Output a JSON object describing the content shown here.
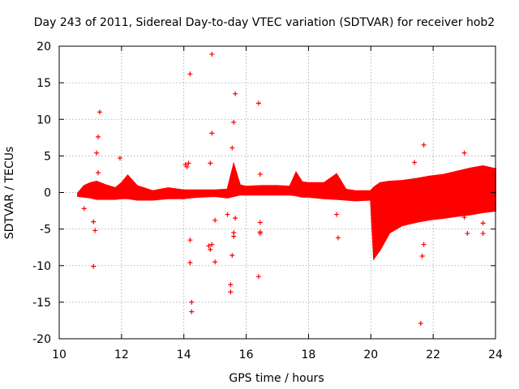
{
  "chart_data": {
    "type": "scatter",
    "title": "Day 243 of 2011, Sidereal Day-to-day VTEC variation (SDTVAR) for receiver hob2",
    "xlabel": "GPS time / hours",
    "ylabel": "SDTVAR / TECUs",
    "xlim": [
      10,
      24
    ],
    "ylim": [
      -20,
      20
    ],
    "xticks": [
      10,
      12,
      14,
      16,
      18,
      20,
      22,
      24
    ],
    "yticks": [
      -20,
      -15,
      -10,
      -5,
      0,
      5,
      10,
      15,
      20
    ],
    "xtick_labels": [
      "10",
      "12",
      "14",
      "16",
      "18",
      "20",
      "22",
      "24"
    ],
    "ytick_labels": [
      "-20",
      "-15",
      "-10",
      "-5",
      "0",
      "5",
      "10",
      "15",
      "20"
    ],
    "grid": true,
    "series_color": "#ff0000",
    "marker": "plus",
    "band": {
      "x": [
        10.6,
        10.8,
        11.0,
        11.2,
        11.5,
        11.8,
        12.0,
        12.2,
        12.5,
        13.0,
        13.5,
        14.0,
        14.2,
        14.5,
        15.0,
        15.4,
        15.6,
        15.8,
        16.0,
        16.5,
        17.0,
        17.4,
        17.6,
        17.8,
        18.0,
        18.5,
        18.9,
        19.2,
        19.5,
        20.0,
        20.1,
        20.3,
        20.6,
        21.0,
        21.5,
        21.9,
        22.3,
        22.8,
        23.2,
        23.6,
        24.0
      ],
      "upper": [
        -0.1,
        0.9,
        1.3,
        1.5,
        1.0,
        0.6,
        1.3,
        2.3,
        0.9,
        0.2,
        0.6,
        0.3,
        0.3,
        0.3,
        0.3,
        0.4,
        3.8,
        1.0,
        0.8,
        0.9,
        0.9,
        0.8,
        2.7,
        1.4,
        1.3,
        1.3,
        2.5,
        0.4,
        0.2,
        0.2,
        0.7,
        1.3,
        1.5,
        1.6,
        1.9,
        2.2,
        2.4,
        2.9,
        3.3,
        3.6,
        3.2
      ],
      "lower": [
        -0.5,
        -0.6,
        -0.7,
        -0.9,
        -0.9,
        -0.9,
        -0.8,
        -0.8,
        -1.0,
        -1.0,
        -0.8,
        -0.8,
        -0.7,
        -0.6,
        -0.5,
        -0.7,
        -0.5,
        -0.3,
        -0.3,
        -0.3,
        -0.3,
        -0.3,
        -0.4,
        -0.6,
        -0.6,
        -0.8,
        -0.9,
        -1.0,
        -1.1,
        -1.0,
        -9.0,
        -7.8,
        -5.5,
        -4.5,
        -4.0,
        -3.7,
        -3.5,
        -3.2,
        -3.0,
        -2.7,
        -2.5
      ]
    },
    "points": [
      [
        10.8,
        -2.2
      ],
      [
        11.1,
        -10.1
      ],
      [
        11.1,
        -4.0
      ],
      [
        11.15,
        -5.2
      ],
      [
        11.2,
        5.4
      ],
      [
        11.25,
        7.6
      ],
      [
        11.25,
        2.7
      ],
      [
        11.3,
        11.0
      ],
      [
        11.95,
        4.7
      ],
      [
        14.05,
        3.8
      ],
      [
        14.1,
        3.5
      ],
      [
        14.15,
        4.0
      ],
      [
        14.2,
        -6.5
      ],
      [
        14.2,
        -9.6
      ],
      [
        14.2,
        16.2
      ],
      [
        14.25,
        -15.0
      ],
      [
        14.25,
        -16.3
      ],
      [
        14.85,
        4.0
      ],
      [
        14.8,
        -7.3
      ],
      [
        14.9,
        -7.1
      ],
      [
        14.85,
        -7.8
      ],
      [
        14.9,
        8.1
      ],
      [
        14.9,
        18.9
      ],
      [
        15.0,
        -9.5
      ],
      [
        15.0,
        -3.8
      ],
      [
        15.4,
        -3.0
      ],
      [
        15.55,
        -8.6
      ],
      [
        15.55,
        6.1
      ],
      [
        15.6,
        9.6
      ],
      [
        15.65,
        13.5
      ],
      [
        15.5,
        -12.6
      ],
      [
        15.5,
        -13.6
      ],
      [
        15.6,
        -5.5
      ],
      [
        15.6,
        -6.0
      ],
      [
        15.65,
        -3.5
      ],
      [
        16.4,
        12.2
      ],
      [
        16.4,
        -11.5
      ],
      [
        16.45,
        -4.1
      ],
      [
        16.45,
        -5.4
      ],
      [
        16.45,
        -5.6
      ],
      [
        16.45,
        2.5
      ],
      [
        18.95,
        -6.2
      ],
      [
        18.9,
        -3.0
      ],
      [
        21.4,
        4.1
      ],
      [
        21.6,
        -17.9
      ],
      [
        21.7,
        6.5
      ],
      [
        21.65,
        -8.7
      ],
      [
        21.7,
        -7.1
      ],
      [
        23.0,
        5.4
      ],
      [
        23.1,
        -5.6
      ],
      [
        23.6,
        -5.6
      ],
      [
        23.6,
        -4.2
      ],
      [
        23.0,
        -3.4
      ]
    ]
  }
}
